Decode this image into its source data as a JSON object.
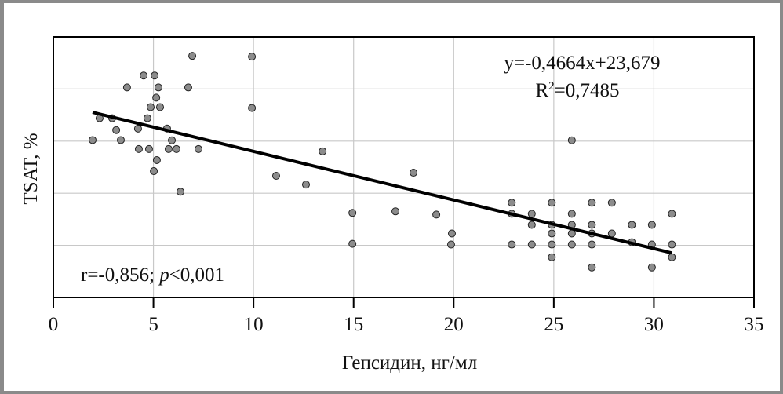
{
  "chart_data": {
    "type": "scatter",
    "title": "",
    "xlabel": "Гепсидин, нг/мл",
    "ylabel": "TSAT, %",
    "xlim": [
      0,
      35
    ],
    "ylim": [
      5,
      30
    ],
    "xticks": [
      "0",
      "5",
      "10",
      "15",
      "20",
      "25",
      "30",
      "35"
    ],
    "xtick_values": [
      0,
      5,
      10,
      15,
      20,
      25,
      30,
      35
    ],
    "ygrid_values": [
      10,
      15,
      20,
      25
    ],
    "grid": true,
    "marker_color": "#8c8c8c",
    "line_color": "#000000",
    "annotations": {
      "equation": "y=-0,4664x+23,679",
      "r2_prefix": "R",
      "r2_sup": "2",
      "r2_value": "=0,7485",
      "corr_r": "r=-0,856; ",
      "corr_p": "p",
      "corr_pval": "<0,001"
    },
    "trendline": {
      "slope": -0.4664,
      "intercept": 23.679,
      "x_range": [
        1.96,
        30.9
      ]
    },
    "points": [
      [
        1.96,
        20.1
      ],
      [
        2.31,
        22.2
      ],
      [
        2.94,
        22.2
      ],
      [
        3.14,
        21.06
      ],
      [
        3.37,
        20.1
      ],
      [
        3.68,
        25.15
      ],
      [
        4.23,
        21.2
      ],
      [
        4.27,
        19.24
      ],
      [
        4.51,
        26.29
      ],
      [
        4.7,
        22.2
      ],
      [
        4.78,
        19.24
      ],
      [
        4.86,
        23.26
      ],
      [
        5.02,
        17.12
      ],
      [
        5.06,
        26.29
      ],
      [
        5.14,
        24.17
      ],
      [
        5.17,
        18.18
      ],
      [
        5.25,
        25.15
      ],
      [
        5.33,
        23.26
      ],
      [
        5.68,
        21.21
      ],
      [
        5.76,
        19.24
      ],
      [
        5.92,
        20.08
      ],
      [
        6.15,
        19.24
      ],
      [
        6.35,
        15.15
      ],
      [
        6.74,
        25.15
      ],
      [
        6.94,
        28.18
      ],
      [
        7.25,
        19.24
      ],
      [
        9.92,
        28.11
      ],
      [
        9.92,
        23.18
      ],
      [
        11.13,
        16.67
      ],
      [
        12.62,
        15.83
      ],
      [
        13.45,
        19.02
      ],
      [
        14.94,
        13.11
      ],
      [
        14.94,
        10.15
      ],
      [
        17.09,
        13.26
      ],
      [
        17.99,
        16.97
      ],
      [
        19.13,
        12.95
      ],
      [
        19.91,
        11.14
      ],
      [
        19.87,
        10.08
      ],
      [
        22.9,
        14.09
      ],
      [
        22.9,
        13.03
      ],
      [
        22.9,
        10.08
      ],
      [
        23.9,
        13.03
      ],
      [
        23.9,
        11.97
      ],
      [
        23.9,
        10.08
      ],
      [
        24.9,
        14.09
      ],
      [
        24.9,
        11.97
      ],
      [
        24.9,
        11.14
      ],
      [
        24.9,
        10.08
      ],
      [
        24.9,
        8.86
      ],
      [
        25.9,
        20.08
      ],
      [
        25.9,
        13.03
      ],
      [
        25.9,
        11.97
      ],
      [
        25.9,
        11.14
      ],
      [
        25.9,
        10.08
      ],
      [
        26.9,
        14.09
      ],
      [
        26.9,
        11.97
      ],
      [
        26.9,
        11.14
      ],
      [
        26.9,
        10.08
      ],
      [
        26.9,
        7.88
      ],
      [
        27.9,
        14.09
      ],
      [
        27.9,
        11.14
      ],
      [
        28.9,
        11.97
      ],
      [
        28.9,
        10.3
      ],
      [
        29.9,
        11.97
      ],
      [
        29.9,
        10.08
      ],
      [
        29.9,
        7.88
      ],
      [
        30.9,
        13.03
      ],
      [
        30.9,
        10.08
      ],
      [
        30.9,
        8.86
      ]
    ]
  }
}
